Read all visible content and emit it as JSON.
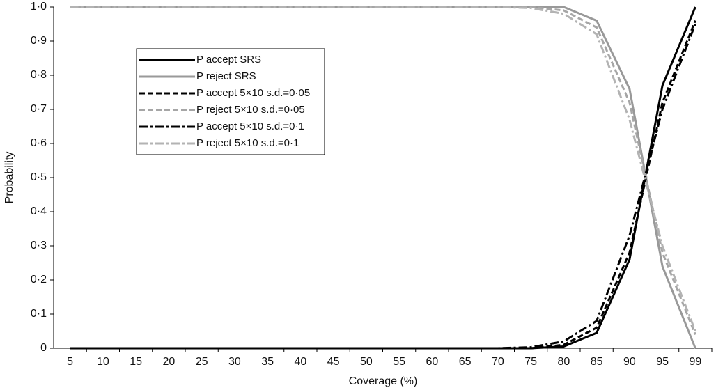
{
  "chart_data": {
    "type": "line",
    "x_label": "Coverage (%)",
    "y_label": "Probability",
    "categories": [
      5,
      10,
      15,
      20,
      25,
      30,
      35,
      40,
      45,
      50,
      55,
      60,
      65,
      70,
      75,
      80,
      85,
      90,
      95,
      99
    ],
    "ylim": [
      0,
      1
    ],
    "yticks": [
      0,
      {
        "value": 0.1,
        "label": "0·1"
      },
      {
        "value": 0.2,
        "label": "0·2"
      },
      {
        "value": 0.3,
        "label": "0·3"
      },
      {
        "value": 0.4,
        "label": "0·4"
      },
      {
        "value": 0.5,
        "label": "0·5"
      },
      {
        "value": 0.6,
        "label": "0·6"
      },
      {
        "value": 0.7,
        "label": "0·7"
      },
      {
        "value": 0.8,
        "label": "0·8"
      },
      {
        "value": 0.9,
        "label": "0·9"
      },
      {
        "value": 1,
        "label": "1·0"
      }
    ],
    "grid": false,
    "legend": "upper left",
    "series": [
      {
        "name": "P accept SRS",
        "color": "#000000",
        "style": "solid",
        "values": [
          0,
          0,
          0,
          0,
          0,
          0,
          0,
          0,
          0,
          0,
          0,
          0,
          0,
          0,
          0,
          0.005,
          0.045,
          0.26,
          0.77,
          1.0
        ]
      },
      {
        "name": "P reject SRS",
        "color": "#999999",
        "style": "solid",
        "values": [
          1,
          1,
          1,
          1,
          1,
          1,
          1,
          1,
          1,
          1,
          1,
          1,
          1,
          1,
          1,
          1.0,
          0.96,
          0.76,
          0.24,
          0.0
        ]
      },
      {
        "name": "P accept 5×10 s.d.=0·05",
        "color": "#000000",
        "style": "dashed",
        "values": [
          0,
          0,
          0,
          0,
          0,
          0,
          0,
          0,
          0,
          0,
          0,
          0,
          0,
          0,
          0,
          0.01,
          0.06,
          0.28,
          0.72,
          0.96
        ]
      },
      {
        "name": "P reject 5×10 s.d.=0·05",
        "color": "#a6a6a6",
        "style": "dashed",
        "values": [
          1,
          1,
          1,
          1,
          1,
          1,
          1,
          1,
          1,
          1,
          1,
          1,
          1,
          1,
          1,
          0.99,
          0.94,
          0.72,
          0.28,
          0.04
        ]
      },
      {
        "name": "P accept 5×10 s.d.=0·1",
        "color": "#000000",
        "style": "dashdot",
        "values": [
          0,
          0,
          0,
          0,
          0,
          0,
          0,
          0,
          0,
          0,
          0,
          0,
          0,
          0,
          0.003,
          0.02,
          0.08,
          0.33,
          0.7,
          0.95
        ]
      },
      {
        "name": "P reject 5×10 s.d.=0·1",
        "color": "#b3b3b3",
        "style": "dashdot",
        "values": [
          1,
          1,
          1,
          1,
          1,
          1,
          1,
          1,
          1,
          1,
          1,
          1,
          1,
          1,
          0.997,
          0.98,
          0.92,
          0.67,
          0.3,
          0.05
        ]
      }
    ]
  }
}
